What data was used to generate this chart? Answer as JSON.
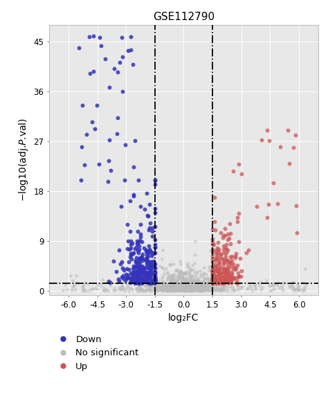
{
  "title": "GSE112790",
  "xlabel": "log₂FC",
  "xlim": [
    -7.0,
    7.0
  ],
  "ylim": [
    -0.8,
    48
  ],
  "xticks": [
    -6.0,
    -4.5,
    -3.0,
    -1.5,
    0.0,
    1.5,
    3.0,
    4.5,
    6.0
  ],
  "xtick_labels": [
    "-6.0",
    "-4.5",
    "-3.0",
    "-1.5",
    "0.0",
    "1.5",
    "3.0",
    "4.5",
    "6.0"
  ],
  "yticks": [
    0,
    9,
    18,
    27,
    36,
    45
  ],
  "ytick_labels": [
    "0",
    "9",
    "18",
    "27",
    "36",
    "45"
  ],
  "vline1": -1.5,
  "vline2": 1.5,
  "hline": 1.3,
  "color_down": "#3333BB",
  "color_up": "#CC5555",
  "color_ns": "#BBBBBB",
  "bg_color": "#E8E8E8",
  "legend_labels": [
    "Down",
    "No significant",
    "Up"
  ],
  "legend_colors": [
    "#3333BB",
    "#BBBBBB",
    "#CC5555"
  ],
  "seed": 99,
  "title_fontsize": 11,
  "label_fontsize": 10,
  "tick_fontsize": 8.5,
  "legend_fontsize": 9.5,
  "point_size_down": 18,
  "point_size_up": 18,
  "point_size_ns": 12,
  "point_alpha_down": 0.85,
  "point_alpha_up": 0.75,
  "point_alpha_ns": 0.55
}
